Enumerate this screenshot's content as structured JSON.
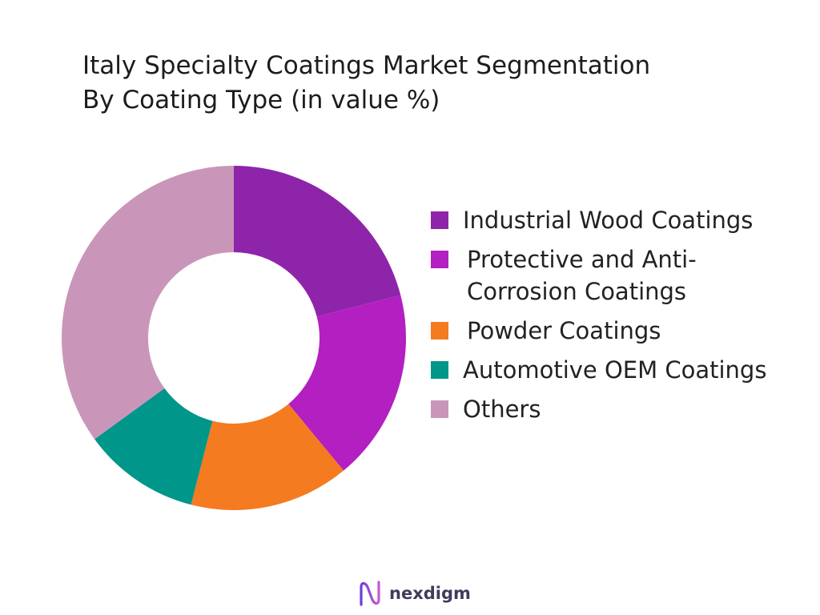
{
  "chart_data": {
    "type": "pie",
    "variant": "donut",
    "title": [
      "Italy Specialty Coatings Market Segmentation",
      "By Coating Type (in value %)"
    ],
    "categories": [
      "Industrial Wood Coatings",
      "Protective and Anti-Corrosion Coatings",
      "Powder Coatings",
      "Automotive OEM Coatings",
      "Others"
    ],
    "values": [
      21,
      18,
      15,
      11,
      35
    ],
    "colors": [
      "#8E24AA",
      "#B31FC0",
      "#F47B20",
      "#00968A",
      "#C996B9"
    ],
    "legend_position": "right",
    "data_labels": false
  },
  "branding": {
    "logo_text": "nexdigm",
    "logo_colors": [
      "#6A3FD8",
      "#C45AD2"
    ]
  }
}
